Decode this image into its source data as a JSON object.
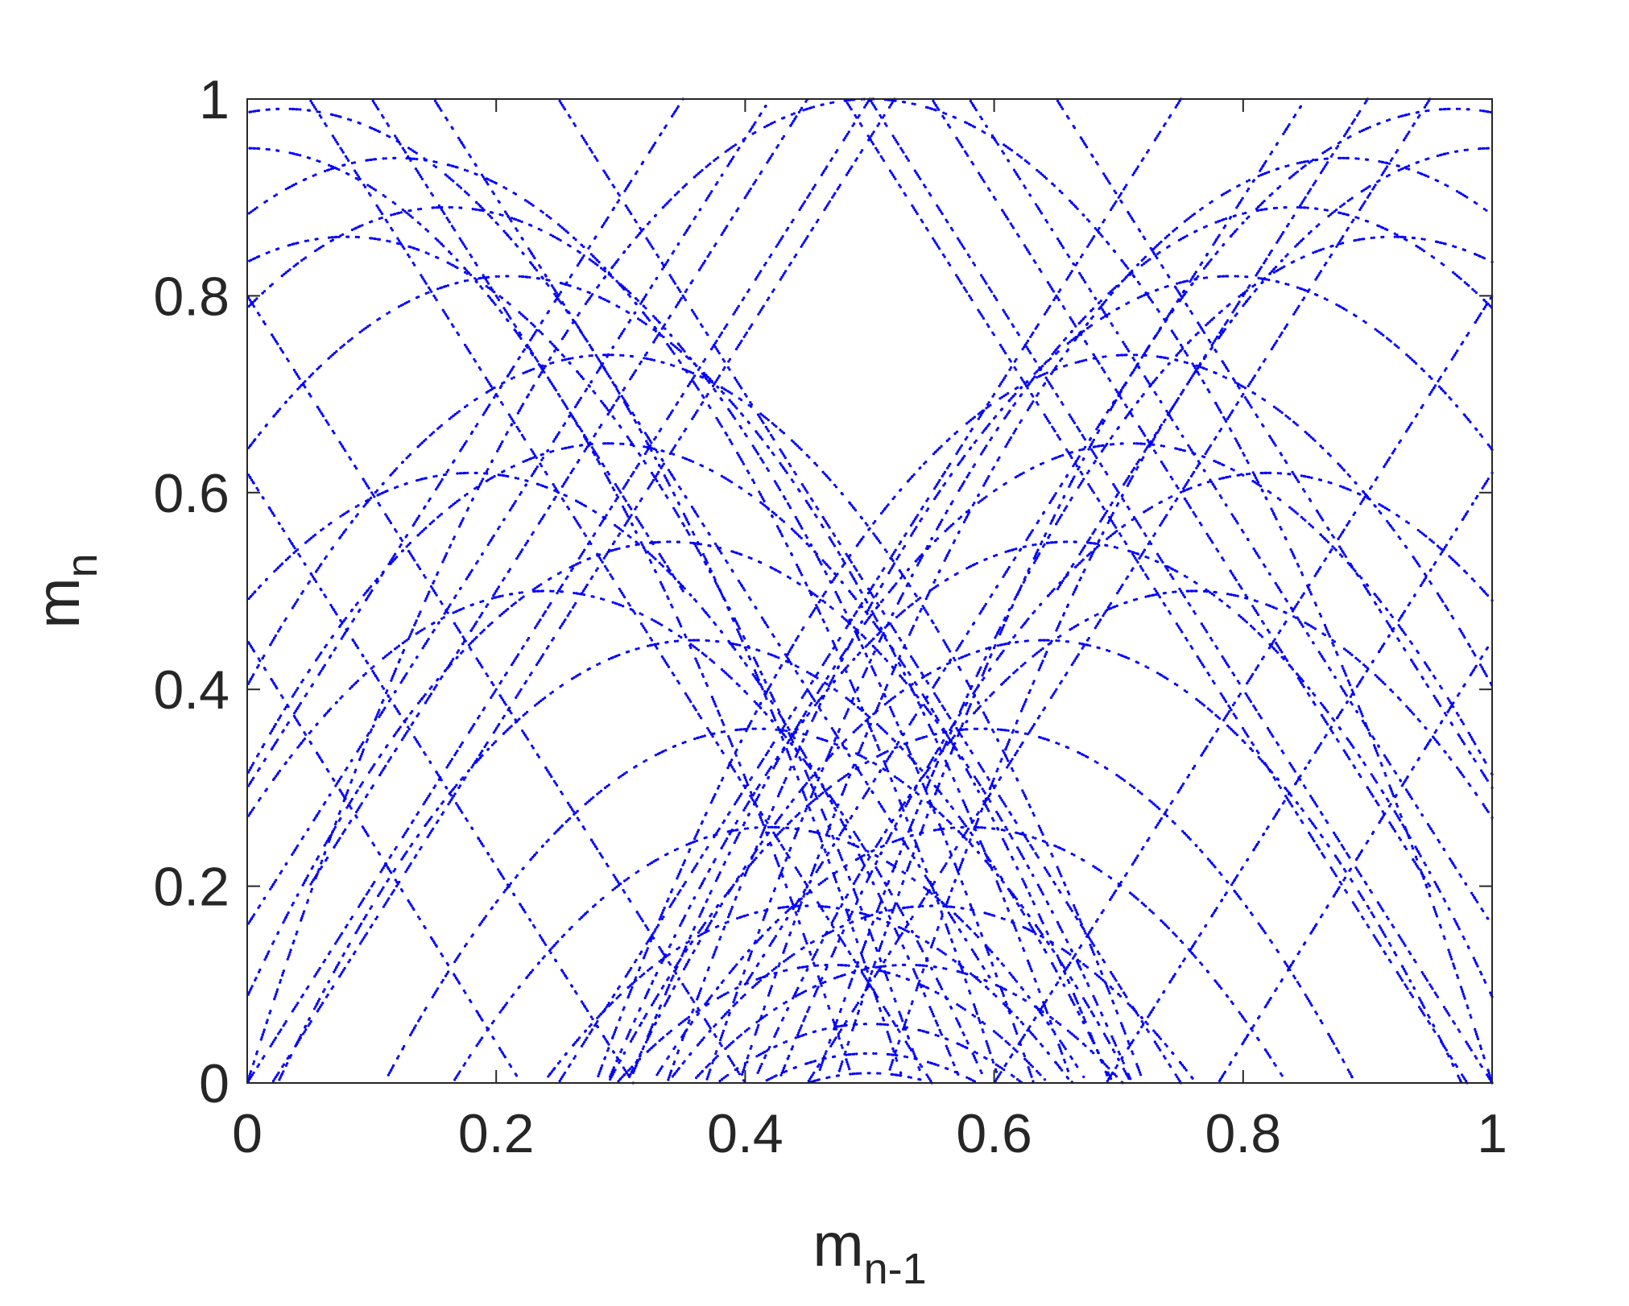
{
  "chart_data": {
    "type": "scatter",
    "title": "",
    "xlabel": {
      "base": "m",
      "subscript": "n-1"
    },
    "ylabel": {
      "base": "m",
      "subscript": "n"
    },
    "xlim": [
      0,
      1
    ],
    "ylim": [
      0,
      1
    ],
    "xticks": [
      0,
      0.2,
      0.4,
      0.6,
      0.8,
      1
    ],
    "yticks": [
      0,
      0.2,
      0.4,
      0.6,
      0.8,
      1
    ],
    "xtick_labels": [
      "0",
      "0.2",
      "0.4",
      "0.6",
      "0.8",
      "1"
    ],
    "ytick_labels": [
      "0",
      "0.2",
      "0.4",
      "0.6",
      "0.8",
      "1"
    ],
    "grid": false,
    "legend": "none",
    "marker_color": "#0000ff",
    "series": [
      {
        "kind": "parabola",
        "h": 0.5,
        "k": 1.0,
        "scale": 4.0
      },
      {
        "kind": "parabola",
        "h": 0.21,
        "k": 0.82,
        "scale": 4.0
      },
      {
        "kind": "parabola",
        "h": 0.79,
        "k": 0.82,
        "scale": 4.0
      },
      {
        "kind": "parabola",
        "h": 0.29,
        "k": 0.74,
        "scale": 4.0
      },
      {
        "kind": "parabola",
        "h": 0.71,
        "k": 0.74,
        "scale": 4.0
      },
      {
        "kind": "parabola",
        "h": 0.29,
        "k": 0.65,
        "scale": 4.0
      },
      {
        "kind": "parabola",
        "h": 0.71,
        "k": 0.65,
        "scale": 4.0
      },
      {
        "kind": "parabola",
        "h": 0.34,
        "k": 0.55,
        "scale": 4.0
      },
      {
        "kind": "parabola",
        "h": 0.66,
        "k": 0.55,
        "scale": 4.0
      },
      {
        "kind": "parabola",
        "h": 0.36,
        "k": 0.45,
        "scale": 4.0
      },
      {
        "kind": "parabola",
        "h": 0.64,
        "k": 0.45,
        "scale": 4.0
      },
      {
        "kind": "parabola",
        "h": 0.41,
        "k": 0.36,
        "scale": 4.0
      },
      {
        "kind": "parabola",
        "h": 0.59,
        "k": 0.36,
        "scale": 4.0
      },
      {
        "kind": "parabola",
        "h": 0.42,
        "k": 0.26,
        "scale": 4.0
      },
      {
        "kind": "parabola",
        "h": 0.58,
        "k": 0.26,
        "scale": 4.0
      },
      {
        "kind": "parabola",
        "h": 0.45,
        "k": 0.18,
        "scale": 4.0
      },
      {
        "kind": "parabola",
        "h": 0.55,
        "k": 0.18,
        "scale": 4.0
      },
      {
        "kind": "parabola",
        "h": 0.47,
        "k": 0.12,
        "scale": 4.0
      },
      {
        "kind": "parabola",
        "h": 0.53,
        "k": 0.12,
        "scale": 4.0
      },
      {
        "kind": "parabola",
        "h": 0.5,
        "k": 0.06,
        "scale": 4.0
      },
      {
        "kind": "parabola",
        "h": 0.5,
        "k": 0.03,
        "scale": 4.0
      },
      {
        "kind": "parabola",
        "h": 0.5,
        "k": 0.01,
        "scale": 4.0
      },
      {
        "kind": "parabola",
        "h": 0.12,
        "k": 0.94,
        "scale": 4.0
      },
      {
        "kind": "parabola",
        "h": 0.88,
        "k": 0.94,
        "scale": 4.0
      },
      {
        "kind": "parabola",
        "h": 0.16,
        "k": 0.89,
        "scale": 4.0
      },
      {
        "kind": "parabola",
        "h": 0.84,
        "k": 0.89,
        "scale": 4.0
      },
      {
        "kind": "parabola",
        "h": 0.03,
        "k": 0.99,
        "scale": 4.0
      },
      {
        "kind": "parabola",
        "h": 0.97,
        "k": 0.99,
        "scale": 4.0
      },
      {
        "kind": "parabola",
        "h": 0.0,
        "k": 0.95,
        "scale": 4.0
      },
      {
        "kind": "parabola",
        "h": 1.0,
        "k": 0.95,
        "scale": 4.0
      },
      {
        "kind": "parabola",
        "h": 0.08,
        "k": 0.86,
        "scale": 4.0
      },
      {
        "kind": "parabola",
        "h": 0.92,
        "k": 0.86,
        "scale": 4.0
      },
      {
        "kind": "parabola",
        "h": 0.18,
        "k": 0.62,
        "scale": 4.0
      },
      {
        "kind": "parabola",
        "h": 0.82,
        "k": 0.62,
        "scale": 4.0
      },
      {
        "kind": "parabola",
        "h": 0.24,
        "k": 0.5,
        "scale": 4.0
      },
      {
        "kind": "parabola",
        "h": 0.76,
        "k": 0.5,
        "scale": 4.0
      },
      {
        "kind": "line",
        "x1": 0.0,
        "y1": 0.0,
        "x2": 0.5,
        "y2": 1.0
      },
      {
        "kind": "line",
        "x1": 0.5,
        "y1": 1.0,
        "x2": 1.0,
        "y2": 0.0
      },
      {
        "kind": "line",
        "x1": 0.02,
        "y1": 0.0,
        "x2": 0.52,
        "y2": 1.0
      },
      {
        "kind": "line",
        "x1": 0.48,
        "y1": 1.0,
        "x2": 0.98,
        "y2": 0.0
      },
      {
        "kind": "line",
        "x1": 0.05,
        "y1": 0.2,
        "x2": 0.45,
        "y2": 1.0
      },
      {
        "kind": "line",
        "x1": 0.55,
        "y1": 1.0,
        "x2": 0.95,
        "y2": 0.2
      },
      {
        "kind": "line",
        "x1": 0.0,
        "y1": 0.16,
        "x2": 0.42,
        "y2": 1.0
      },
      {
        "kind": "line",
        "x1": 0.58,
        "y1": 1.0,
        "x2": 1.0,
        "y2": 0.16
      },
      {
        "kind": "line",
        "x1": 0.0,
        "y1": 0.8,
        "x2": 0.4,
        "y2": 0.0
      },
      {
        "kind": "line",
        "x1": 0.6,
        "y1": 0.0,
        "x2": 1.0,
        "y2": 0.8
      },
      {
        "kind": "line",
        "x1": 0.0,
        "y1": 0.45,
        "x2": 0.22,
        "y2": 0.0
      },
      {
        "kind": "line",
        "x1": 0.78,
        "y1": 0.0,
        "x2": 1.0,
        "y2": 0.45
      },
      {
        "kind": "line",
        "x1": 0.05,
        "y1": 1.0,
        "x2": 0.55,
        "y2": 0.0
      },
      {
        "kind": "line",
        "x1": 0.45,
        "y1": 0.0,
        "x2": 0.95,
        "y2": 1.0
      },
      {
        "kind": "line",
        "x1": 0.15,
        "y1": 1.0,
        "x2": 0.6,
        "y2": 0.1
      },
      {
        "kind": "line",
        "x1": 0.4,
        "y1": 0.1,
        "x2": 0.85,
        "y2": 1.0
      },
      {
        "kind": "line",
        "x1": 0.25,
        "y1": 1.0,
        "x2": 0.75,
        "y2": 0.0
      },
      {
        "kind": "line",
        "x1": 0.25,
        "y1": 0.0,
        "x2": 0.75,
        "y2": 1.0
      },
      {
        "kind": "line",
        "x1": 0.1,
        "y1": 1.0,
        "x2": 0.35,
        "y2": 0.5
      },
      {
        "kind": "line",
        "x1": 0.65,
        "y1": 0.5,
        "x2": 0.9,
        "y2": 1.0
      },
      {
        "kind": "line",
        "x1": 0.0,
        "y1": 0.62,
        "x2": 0.31,
        "y2": 0.0
      },
      {
        "kind": "line",
        "x1": 0.69,
        "y1": 0.0,
        "x2": 1.0,
        "y2": 0.62
      },
      {
        "kind": "line",
        "x1": 0.0,
        "y1": 0.3,
        "x2": 0.35,
        "y2": 1.0
      },
      {
        "kind": "line",
        "x1": 0.65,
        "y1": 1.0,
        "x2": 1.0,
        "y2": 0.3
      }
    ]
  }
}
